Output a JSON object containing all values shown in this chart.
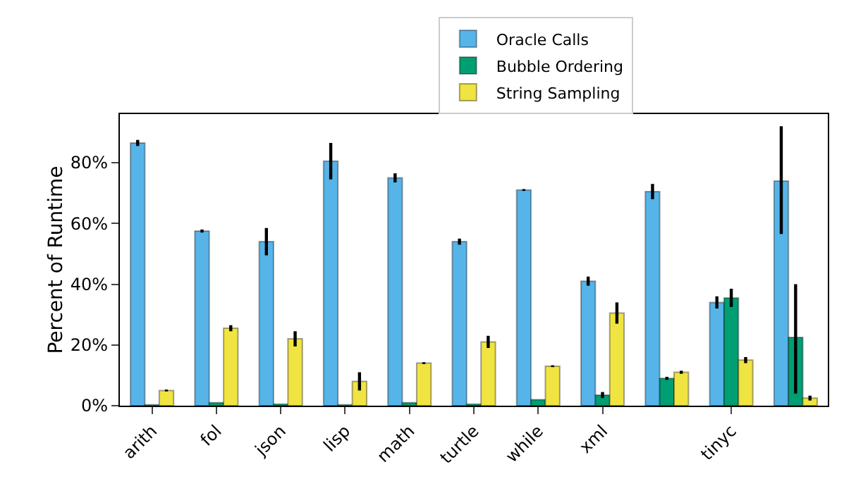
{
  "chart_data": {
    "type": "bar",
    "ylabel": "Percent of Runtime",
    "categories": [
      "arith",
      "fol",
      "json",
      "lisp",
      "math",
      "turtle",
      "while",
      "xml",
      null,
      "tinyc",
      null
    ],
    "series": [
      {
        "name": "Oracle Calls",
        "color": "#56b4e9",
        "values": [
          86.5,
          57.5,
          54,
          80.5,
          75,
          54,
          71,
          41,
          70.5,
          34,
          74
        ],
        "errors": [
          1,
          0.5,
          4.5,
          6,
          1.5,
          1,
          0.3,
          1.5,
          2.5,
          2,
          [
            56.5,
            92
          ]
        ]
      },
      {
        "name": "Bubble Ordering",
        "color": "#009e73",
        "values": [
          0.3,
          1,
          0.5,
          0.3,
          1,
          0.5,
          2,
          3.5,
          9,
          35.5,
          22.5
        ],
        "errors": [
          null,
          null,
          null,
          null,
          null,
          null,
          null,
          1,
          0.5,
          3,
          [
            4,
            40
          ]
        ]
      },
      {
        "name": "String Sampling",
        "color": "#f0e442",
        "values": [
          5,
          25.5,
          22,
          8,
          14,
          21,
          13,
          30.5,
          11,
          15,
          2.5
        ],
        "errors": [
          0.3,
          1,
          2.5,
          3,
          0.3,
          2,
          0.3,
          3.5,
          0.5,
          1,
          0.8
        ]
      }
    ],
    "ylim": [
      0,
      96
    ],
    "yticks": [
      {
        "value": 0,
        "label": "0%"
      },
      {
        "value": 20,
        "label": "20%"
      },
      {
        "value": 40,
        "label": "40%"
      },
      {
        "value": 60,
        "label": "60%"
      },
      {
        "value": 80,
        "label": "80%"
      }
    ],
    "grid": false,
    "legend": "top right"
  }
}
